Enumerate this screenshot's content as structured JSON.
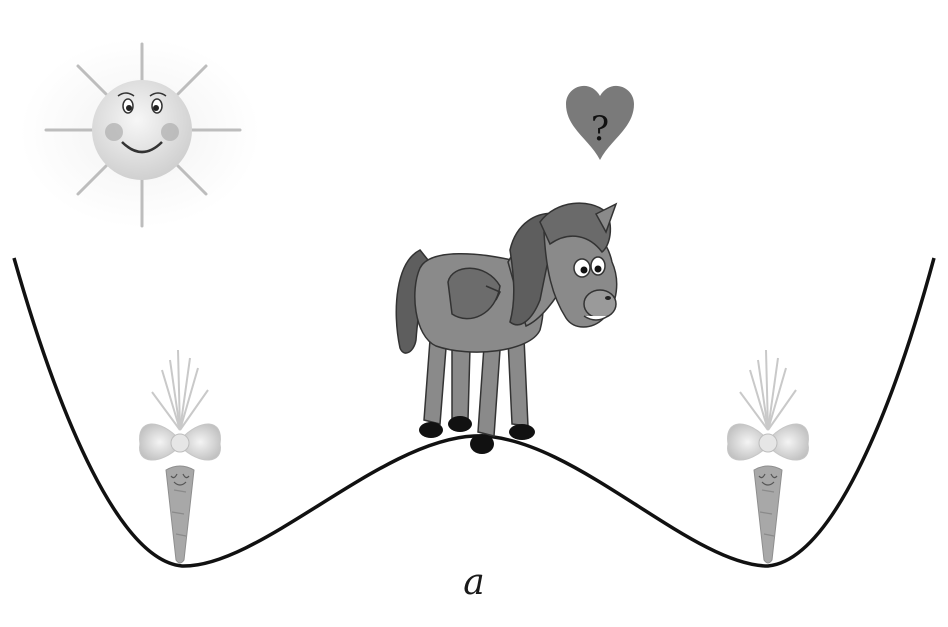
{
  "figure": {
    "caption": "a",
    "heart_symbol": "?",
    "icons": [
      "sun-icon",
      "heart-question-icon",
      "donkey-icon",
      "carrot-icon"
    ],
    "colors": {
      "curve": "#111111",
      "donkey_body": "#8a8a8a",
      "donkey_mane": "#5e5e5e",
      "heart": "#7a7a7a",
      "sun": "#e2e2e2",
      "carrot": "#a8a8a8"
    }
  }
}
